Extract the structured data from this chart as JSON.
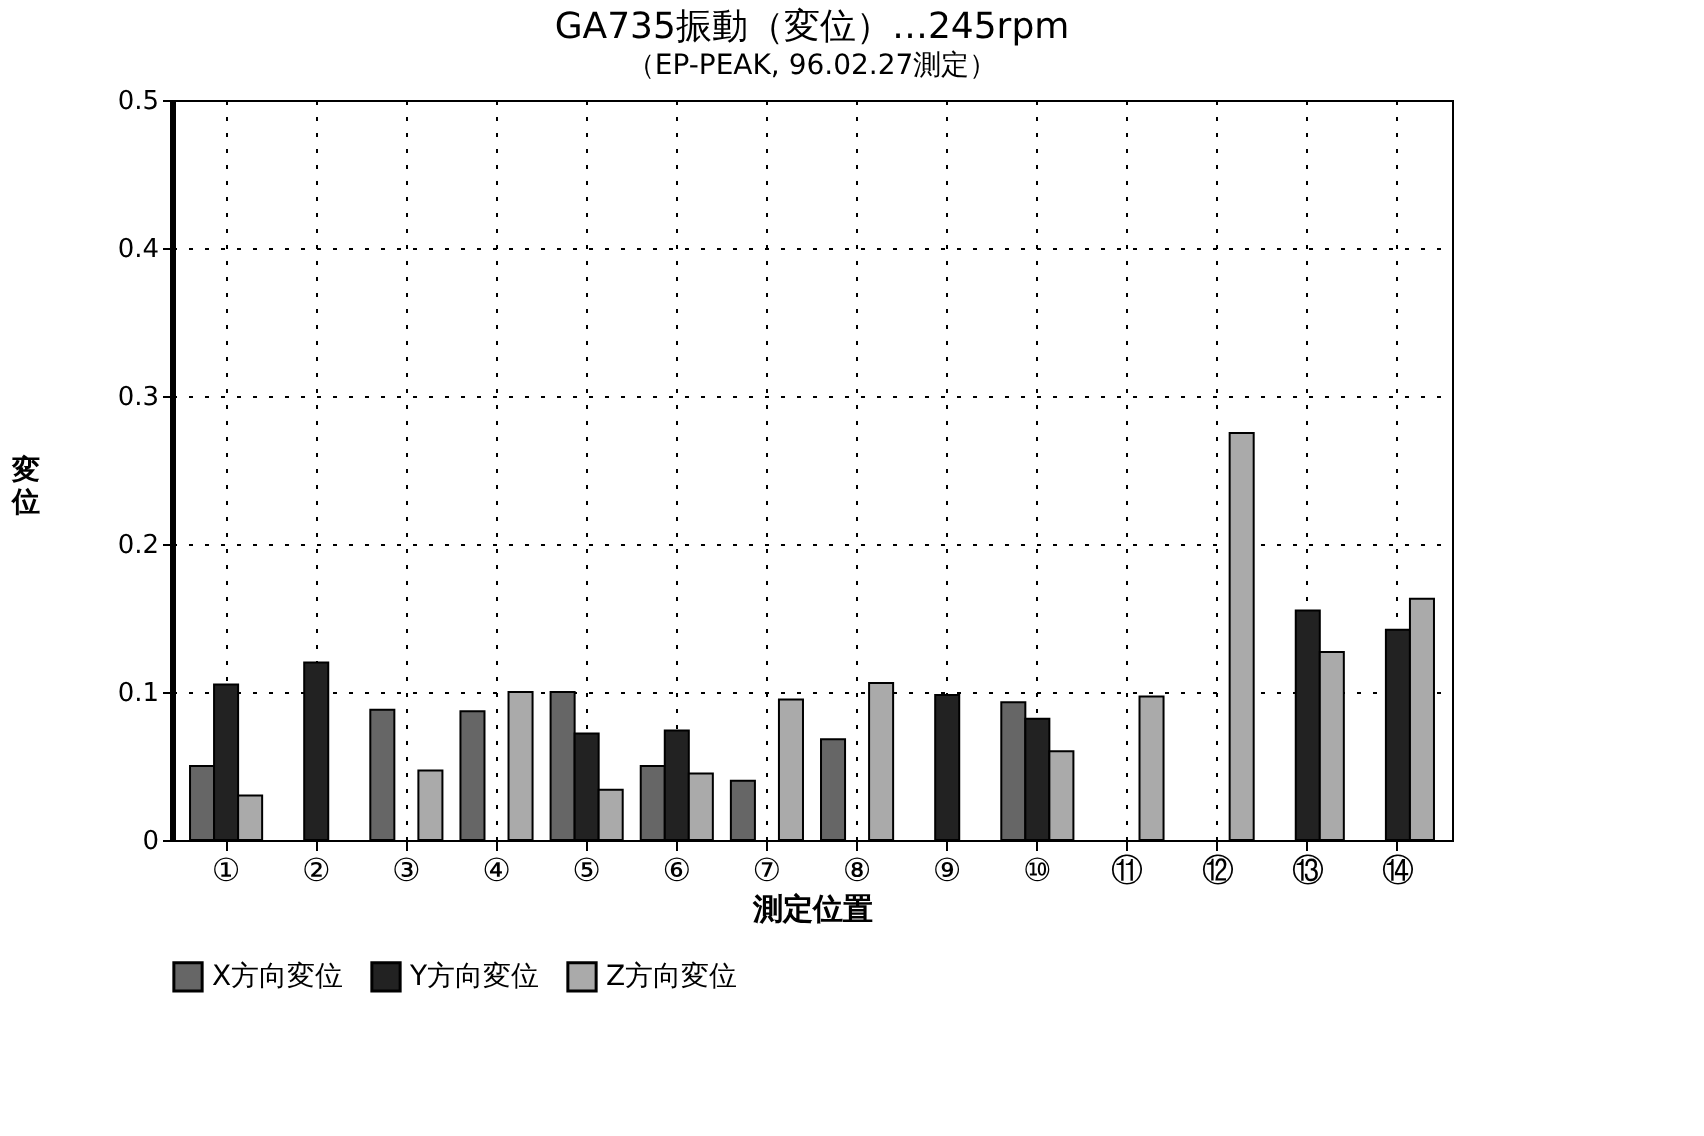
{
  "chart_data": {
    "type": "bar",
    "title": "GA735振動（変位）…245rpm",
    "subtitle": "（EP-PEAK, 96.02.27測定）",
    "xlabel": "測定位置",
    "ylabel": "変位",
    "categories": [
      "①",
      "②",
      "③",
      "④",
      "⑤",
      "⑥",
      "⑦",
      "⑧",
      "⑨",
      "⑩",
      "⑪",
      "⑫",
      "⑬",
      "⑭"
    ],
    "series": [
      {
        "name": "X方向変位",
        "color": "#666666",
        "values": [
          0.05,
          null,
          0.088,
          0.087,
          0.1,
          0.05,
          0.04,
          0.068,
          null,
          0.093,
          null,
          null,
          null,
          null
        ]
      },
      {
        "name": "Y方向変位",
        "color": "#222222",
        "values": [
          0.105,
          0.12,
          null,
          null,
          0.072,
          0.074,
          null,
          null,
          0.098,
          0.082,
          null,
          null,
          0.155,
          0.142
        ]
      },
      {
        "name": "Z方向変位",
        "color": "#aaaaaa",
        "values": [
          0.03,
          null,
          0.047,
          0.1,
          0.034,
          0.045,
          0.095,
          0.106,
          null,
          0.06,
          0.097,
          0.275,
          0.127,
          0.163
        ]
      }
    ],
    "ylim": [
      0,
      0.5
    ],
    "yticks": [
      0,
      0.1,
      0.2,
      0.3,
      0.4,
      0.5
    ],
    "grid": true,
    "legend": "bottom"
  }
}
